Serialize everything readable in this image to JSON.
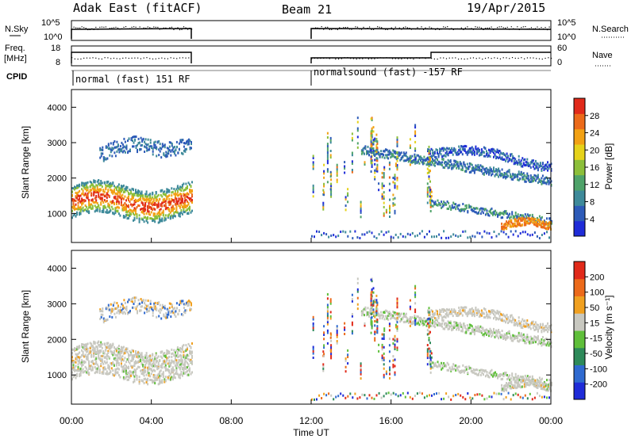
{
  "header": {
    "station": "Adak East (fitACF)",
    "beam": "Beam 21",
    "date": "19/Apr/2015"
  },
  "top_panels": {
    "nsky_label": "N.Sky",
    "nsky_ticks": [
      "10^5",
      "10^0"
    ],
    "nsearch_label": "N.Search",
    "nsearch_ticks": [
      "10^5",
      "10^0"
    ],
    "freq_label": "Freq.",
    "freq_unit": "[MHz]",
    "freq_ticks": [
      "18",
      "8"
    ],
    "nave_label": "Nave",
    "nave_ticks": [
      "60",
      "0"
    ],
    "cpid_label": "CPID",
    "cpid_segments": [
      "normal (fast) 151 RF",
      "normalsound (fast) -157 RF"
    ]
  },
  "chart_data": [
    {
      "type": "heatmap",
      "name": "power",
      "ylabel": "Slant Range [km]",
      "yticks": [
        "4000",
        "3000",
        "2000",
        "1000"
      ],
      "ylim": [
        180,
        4500
      ],
      "colorbar_label": "Power [dB]",
      "colorbar_ticks": [
        "28",
        "24",
        "20",
        "16",
        "12",
        "8",
        "4"
      ],
      "colorbar_range": [
        0,
        30
      ],
      "colors": [
        "#1f2cd8",
        "#2d5bb8",
        "#3e8a9a",
        "#4fa36a",
        "#8cbf3a",
        "#e6d21a",
        "#f2a114",
        "#ec6a1a",
        "#e12a1a"
      ],
      "data_gap_ut": [
        6.0,
        12.0
      ]
    },
    {
      "type": "heatmap",
      "name": "velocity",
      "ylabel": "Slant Range [km]",
      "yticks": [
        "4000",
        "3000",
        "2000",
        "1000"
      ],
      "ylim": [
        180,
        4500
      ],
      "colorbar_label": "Velocity [m s⁻¹]",
      "colorbar_ticks": [
        "200",
        "100",
        "50",
        "15",
        "-15",
        "-50",
        "-100",
        "-200"
      ],
      "colorbar_range": [
        -250,
        250
      ],
      "colors": [
        "#1f2cd8",
        "#2f6ad0",
        "#2e8a5a",
        "#5fbf3a",
        "#c8c8c0",
        "#f0a020",
        "#ec6a1a",
        "#e12a1a"
      ],
      "data_gap_ut": [
        6.0,
        12.0
      ]
    }
  ],
  "x_axis": {
    "ticks": [
      "00:00",
      "04:00",
      "08:00",
      "12:00",
      "16:00",
      "20:00",
      "00:00"
    ],
    "label": "Time UT"
  }
}
